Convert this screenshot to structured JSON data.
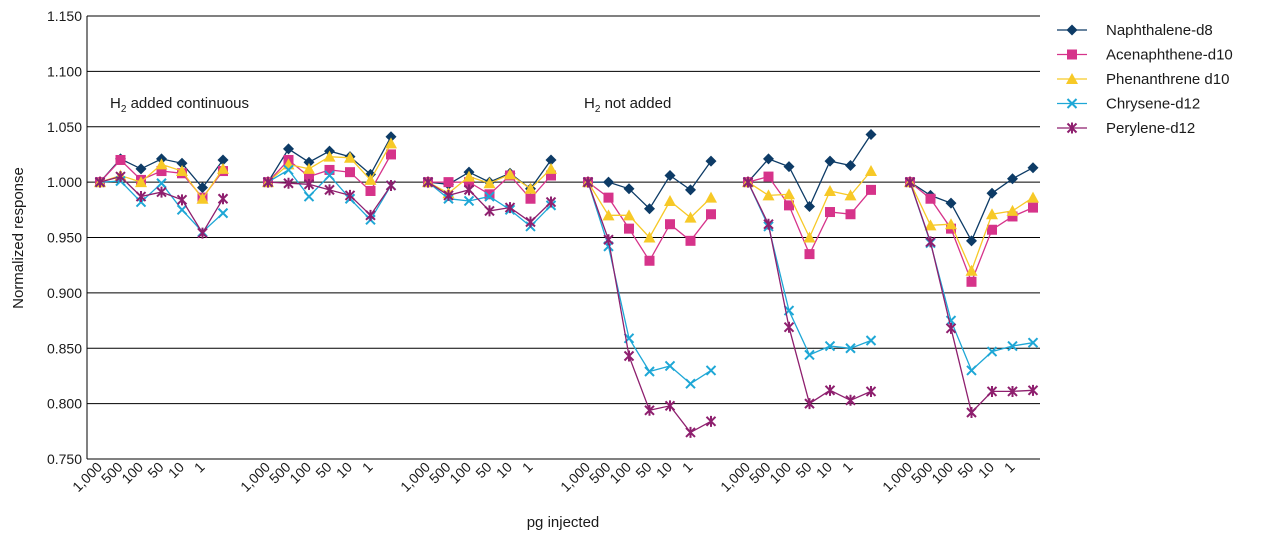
{
  "chart_data": {
    "type": "line",
    "xlabel": "pg injected",
    "ylabel": "Normalized response",
    "ylim": [
      0.75,
      1.15
    ],
    "y_ticks": [
      "0.750",
      "0.800",
      "0.850",
      "0.900",
      "0.950",
      "1.000",
      "1.050",
      "1.100",
      "1.150"
    ],
    "grid": "horizontal",
    "legend_position": "right",
    "group_tick_labels": [
      "1,000",
      "500",
      "100",
      "50",
      "10",
      "1"
    ],
    "annotations": [
      {
        "base": "H",
        "sub": "2",
        "text": " added continuous"
      },
      {
        "base": "H",
        "sub": "2",
        "text": " not added"
      }
    ],
    "series": [
      {
        "name": "Naphthalene-d8",
        "color": "#0d3b66",
        "marker": "diamond",
        "groups": [
          [
            1.0,
            1.021,
            1.012,
            1.021,
            1.017,
            0.995,
            1.02
          ],
          [
            1.0,
            1.03,
            1.018,
            1.028,
            1.023,
            1.007,
            1.041
          ],
          [
            1.0,
            0.998,
            1.009,
            1.0,
            1.008,
            0.994,
            1.02
          ],
          [
            1.0,
            1.0,
            0.994,
            0.976,
            1.006,
            0.993,
            1.019
          ],
          [
            1.0,
            1.021,
            1.014,
            0.978,
            1.019,
            1.015,
            1.043
          ],
          [
            1.0,
            0.988,
            0.981,
            0.947,
            0.99,
            1.003,
            1.013
          ]
        ]
      },
      {
        "name": "Acenaphthene-d10",
        "color": "#d6338a",
        "marker": "square",
        "groups": [
          [
            1.0,
            1.02,
            1.002,
            1.01,
            1.008,
            0.986,
            1.01
          ],
          [
            1.0,
            1.02,
            1.005,
            1.011,
            1.009,
            0.992,
            1.025
          ],
          [
            1.0,
            1.0,
            1.0,
            0.989,
            1.006,
            0.985,
            1.006
          ],
          [
            1.0,
            0.986,
            0.958,
            0.929,
            0.962,
            0.947,
            0.971
          ],
          [
            1.0,
            1.005,
            0.979,
            0.935,
            0.973,
            0.971,
            0.993
          ],
          [
            1.0,
            0.985,
            0.958,
            0.91,
            0.957,
            0.969,
            0.977
          ]
        ]
      },
      {
        "name": "Phenanthrene d10",
        "color": "#f7c927",
        "marker": "triangle",
        "groups": [
          [
            1.0,
            1.006,
            1.0,
            1.016,
            1.01,
            0.985,
            1.012
          ],
          [
            1.0,
            1.016,
            1.012,
            1.023,
            1.022,
            1.002,
            1.035
          ],
          [
            1.0,
            0.99,
            1.005,
            0.999,
            1.007,
            0.994,
            1.012
          ],
          [
            1.0,
            0.97,
            0.97,
            0.95,
            0.983,
            0.968,
            0.986
          ],
          [
            1.0,
            0.988,
            0.989,
            0.95,
            0.992,
            0.988,
            1.01
          ],
          [
            1.0,
            0.961,
            0.962,
            0.92,
            0.971,
            0.974,
            0.986
          ]
        ]
      },
      {
        "name": "Chrysene-d12",
        "color": "#1ea7d6",
        "marker": "x",
        "groups": [
          [
            1.0,
            1.001,
            0.982,
            0.999,
            0.975,
            0.955,
            0.972
          ],
          [
            1.0,
            1.011,
            0.987,
            1.006,
            0.985,
            0.966,
            0.997
          ],
          [
            1.0,
            0.985,
            0.983,
            0.987,
            0.975,
            0.96,
            0.979
          ],
          [
            1.0,
            0.942,
            0.859,
            0.829,
            0.834,
            0.818,
            0.83
          ],
          [
            1.0,
            0.96,
            0.884,
            0.844,
            0.852,
            0.85,
            0.857
          ],
          [
            1.0,
            0.945,
            0.875,
            0.83,
            0.847,
            0.852,
            0.855
          ]
        ]
      },
      {
        "name": "Perylene-d12",
        "color": "#8e1f6e",
        "marker": "asterisk",
        "groups": [
          [
            1.0,
            1.005,
            0.987,
            0.991,
            0.984,
            0.954,
            0.985
          ],
          [
            1.0,
            0.999,
            0.998,
            0.993,
            0.988,
            0.97,
            0.997
          ],
          [
            1.0,
            0.988,
            0.993,
            0.974,
            0.977,
            0.964,
            0.982
          ],
          [
            1.0,
            0.948,
            0.843,
            0.794,
            0.798,
            0.774,
            0.784
          ],
          [
            1.0,
            0.962,
            0.869,
            0.8,
            0.812,
            0.803,
            0.811
          ],
          [
            1.0,
            0.946,
            0.868,
            0.792,
            0.811,
            0.811,
            0.812
          ]
        ]
      }
    ]
  }
}
